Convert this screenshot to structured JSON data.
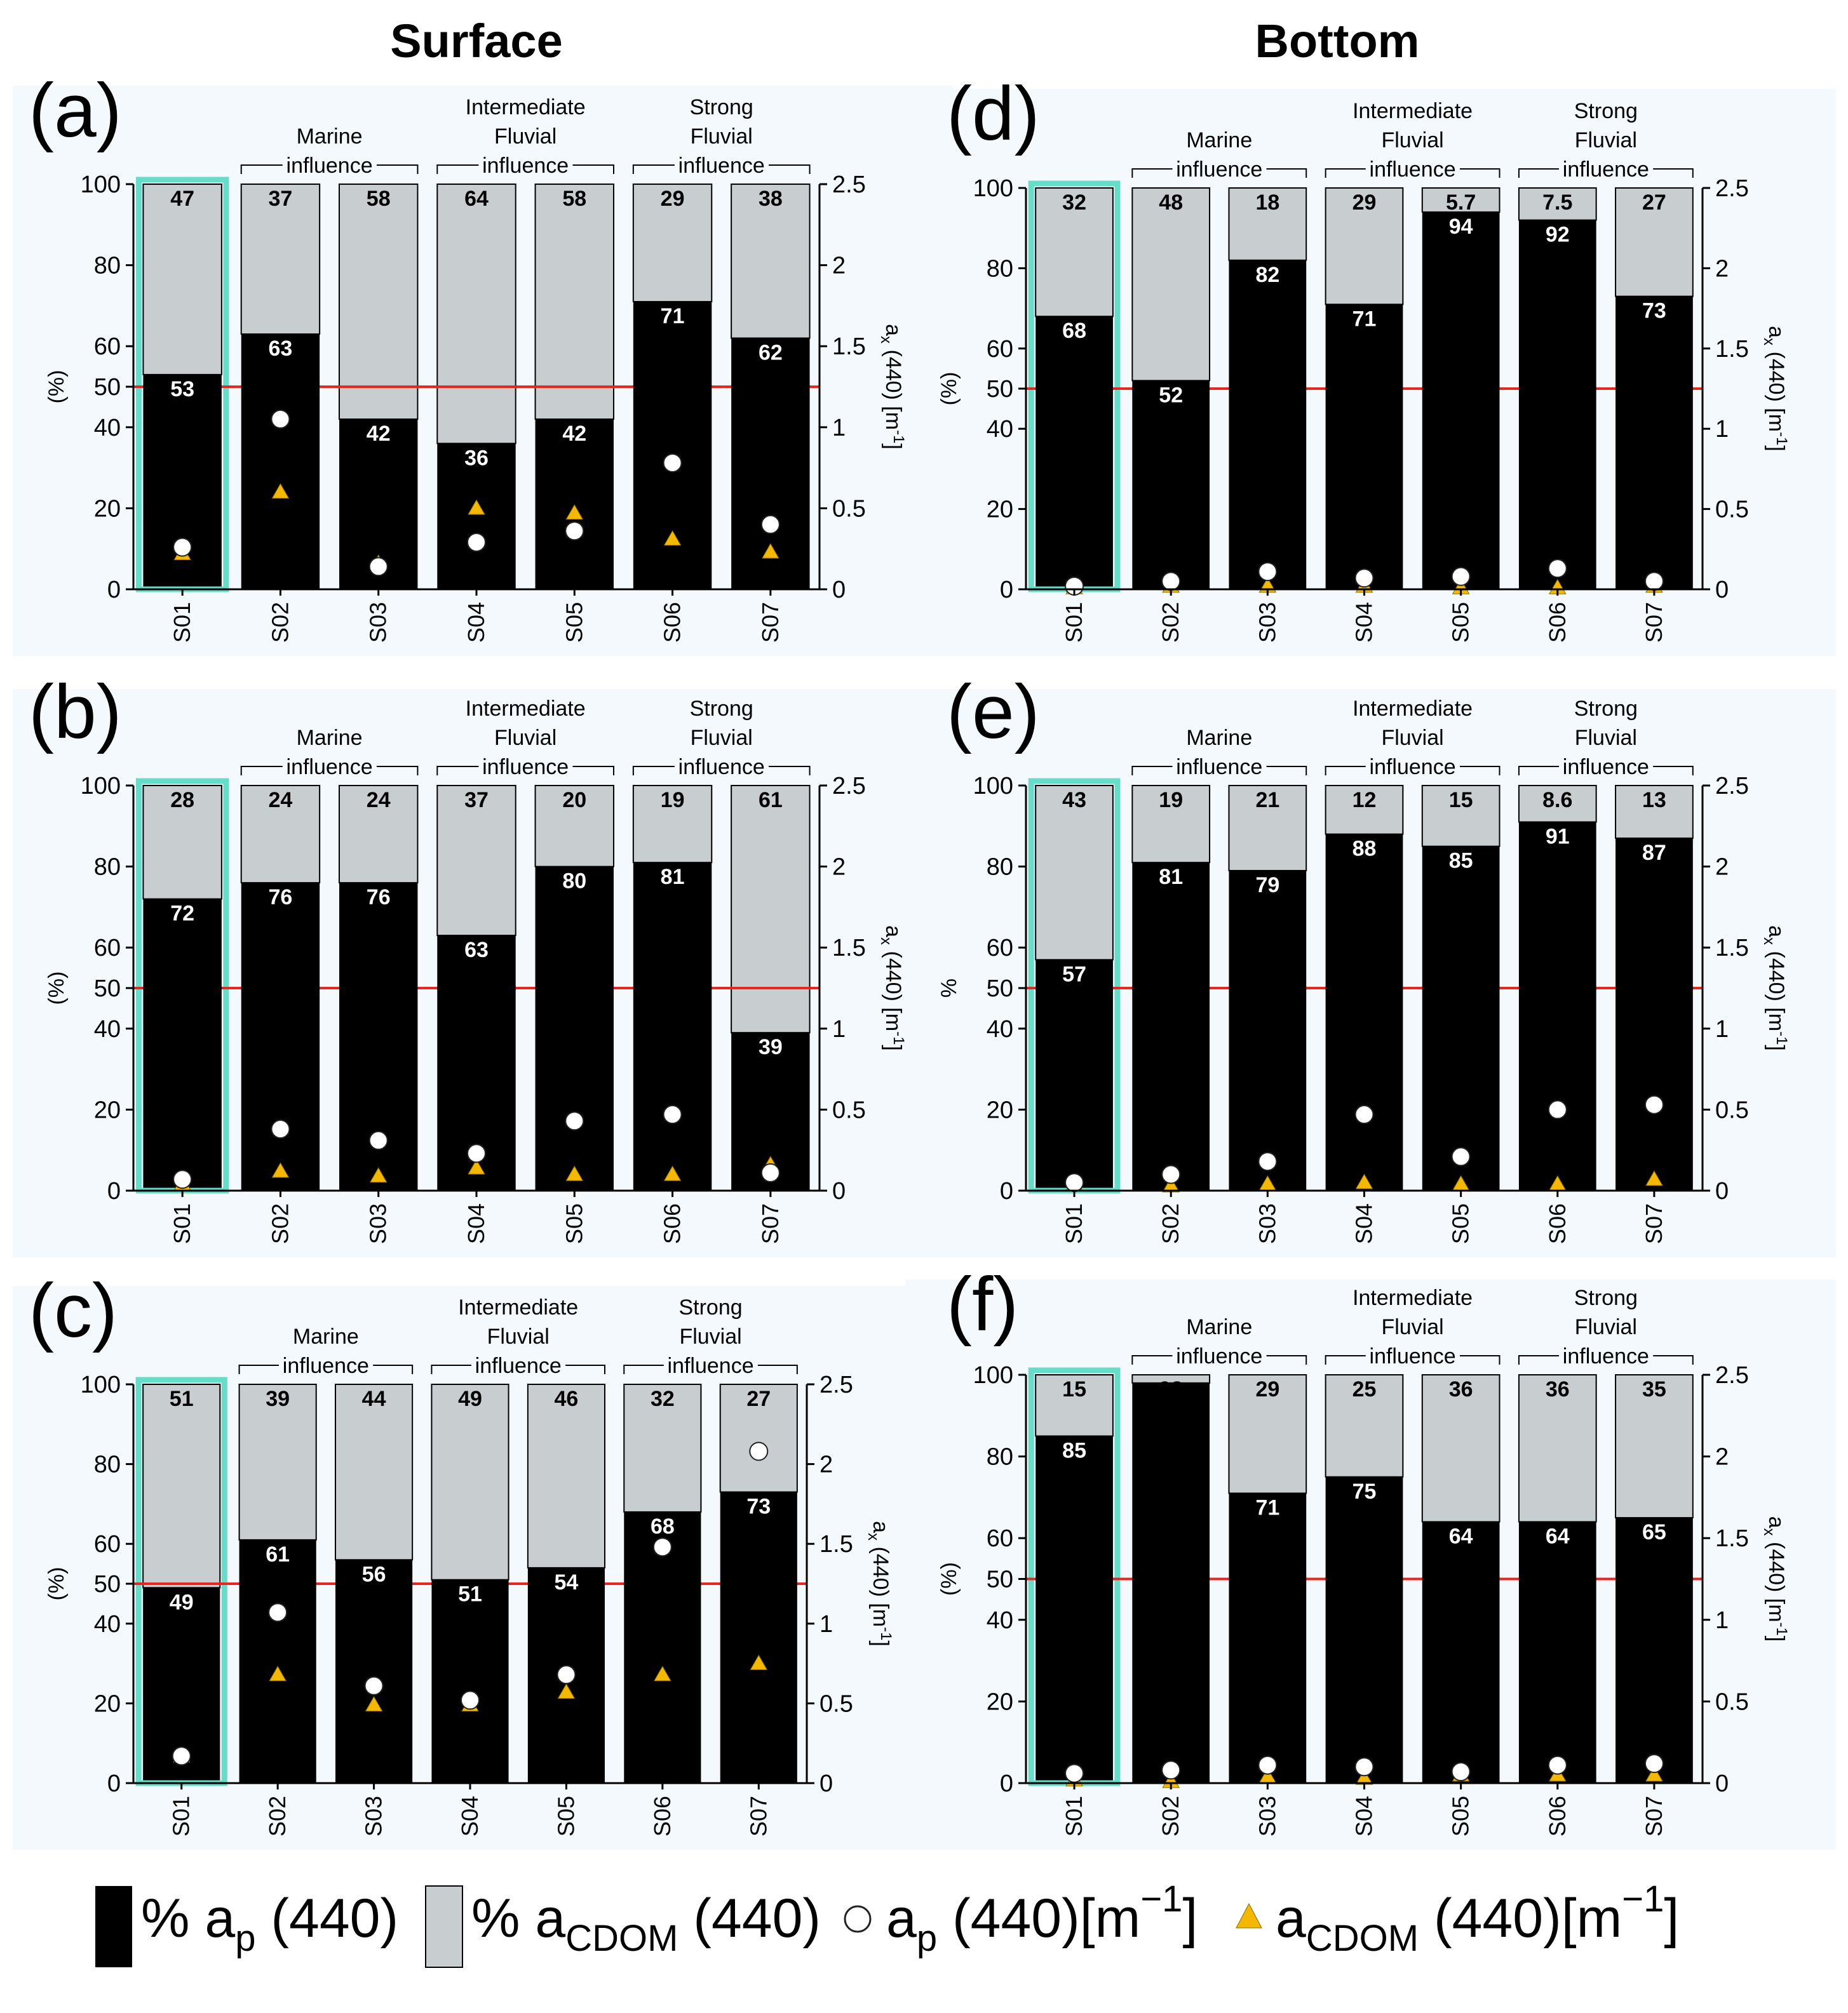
{
  "figure": {
    "column_titles": [
      "Surface",
      "Bottom"
    ],
    "legend": {
      "ap_pct": {
        "pre": "% a",
        "sub": "p",
        "post": " (440)"
      },
      "acdom_pct": {
        "pre": "% a",
        "sub": "CDOM",
        "post": " (440)"
      },
      "ap_abs": {
        "pre": "a",
        "sub": "p",
        "mid": " (440)[m",
        "sup": "−1",
        "post": "]"
      },
      "acdom_abs": {
        "pre": "a",
        "sub": "CDOM",
        "mid": " (440)[m",
        "sup": "−1",
        "post": "]"
      }
    },
    "colors": {
      "ap_bar": "#000000",
      "cdom_bar": "#c8cdd0",
      "panel_bg": "#f3f9fc",
      "highlight": "#66ddc8",
      "ref_line": "#e8261e",
      "triangle": "#f5b800",
      "circle_fill": "#ffffff"
    }
  },
  "chart_data": [
    {
      "type": "bar",
      "panel": "(a)",
      "column": "Surface",
      "categories": [
        "S01",
        "S02",
        "S03",
        "S04",
        "S05",
        "S06",
        "S07"
      ],
      "groups": [
        {
          "lines": [
            "Marine",
            "influence"
          ],
          "span": [
            "S02",
            "S03"
          ]
        },
        {
          "lines": [
            "Intermediate",
            "Fluvial",
            "influence"
          ],
          "span": [
            "S04",
            "S05"
          ]
        },
        {
          "lines": [
            "Strong",
            "Fluvial",
            "influence"
          ],
          "span": [
            "S06",
            "S07"
          ]
        }
      ],
      "ylabel": "(%)",
      "ylim": [
        0,
        100
      ],
      "yticks": [
        "0",
        "20",
        "40",
        "50",
        "60",
        "80",
        "100"
      ],
      "y2label": "ax (440) [m-1]",
      "y2lim": [
        0,
        2.5
      ],
      "y2ticks": [
        "0",
        "0.5",
        "1",
        "1.5",
        "2",
        "2.5"
      ],
      "reference_line_pct": 50,
      "highlight_category": "S01",
      "series": [
        {
          "name": "% ap (440)",
          "values": [
            53,
            63,
            42,
            36,
            42,
            71,
            62
          ],
          "labels": [
            "53",
            "63",
            "42",
            "36",
            "42",
            "71",
            "62"
          ]
        },
        {
          "name": "% aCDOM (440)",
          "values": [
            47,
            37,
            58,
            64,
            58,
            29,
            38
          ],
          "labels": [
            "47",
            "37",
            "58",
            "64",
            "58",
            "29",
            "38"
          ]
        },
        {
          "name": "ap (440) [m-1]",
          "axis": "right",
          "values": [
            0.26,
            1.05,
            0.14,
            0.29,
            0.36,
            0.78,
            0.4
          ]
        },
        {
          "name": "aCDOM (440) [m-1]",
          "axis": "right",
          "values": [
            0.22,
            0.6,
            0.16,
            0.5,
            0.47,
            0.31,
            0.23
          ]
        }
      ]
    },
    {
      "type": "bar",
      "panel": "(b)",
      "column": "Surface",
      "categories": [
        "S01",
        "S02",
        "S03",
        "S04",
        "S05",
        "S06",
        "S07"
      ],
      "groups": [
        {
          "lines": [
            "Marine",
            "influence"
          ],
          "span": [
            "S02",
            "S03"
          ]
        },
        {
          "lines": [
            "Intermediate",
            "Fluvial",
            "influence"
          ],
          "span": [
            "S04",
            "S05"
          ]
        },
        {
          "lines": [
            "Strong",
            "Fluvial",
            "influence"
          ],
          "span": [
            "S06",
            "S07"
          ]
        }
      ],
      "ylabel": "(%)",
      "ylim": [
        0,
        100
      ],
      "yticks": [
        "0",
        "20",
        "40",
        "50",
        "60",
        "80",
        "100"
      ],
      "y2label": "ax (440) [m-1]",
      "y2lim": [
        0,
        2.5
      ],
      "y2ticks": [
        "0",
        "0.5",
        "1",
        "1.5",
        "2",
        "2.5"
      ],
      "reference_line_pct": 50,
      "highlight_category": "S01",
      "series": [
        {
          "name": "% ap (440)",
          "values": [
            72,
            76,
            76,
            63,
            80,
            81,
            39
          ],
          "labels": [
            "72",
            "76",
            "76",
            "63",
            "80",
            "81",
            "39"
          ]
        },
        {
          "name": "% aCDOM (440)",
          "values": [
            28,
            24,
            24,
            37,
            20,
            19,
            61
          ],
          "labels": [
            "28",
            "24",
            "24",
            "37",
            "20",
            "19",
            "61"
          ]
        },
        {
          "name": "ap (440) [m-1]",
          "axis": "right",
          "values": [
            0.07,
            0.38,
            0.31,
            0.23,
            0.43,
            0.47,
            0.11
          ]
        },
        {
          "name": "aCDOM (440) [m-1]",
          "axis": "right",
          "values": [
            0.04,
            0.12,
            0.09,
            0.14,
            0.1,
            0.1,
            0.16
          ]
        }
      ]
    },
    {
      "type": "bar",
      "panel": "(c)",
      "column": "Surface",
      "categories": [
        "S01",
        "S02",
        "S03",
        "S04",
        "S05",
        "S06",
        "S07"
      ],
      "groups": [
        {
          "lines": [
            "Marine",
            "influence"
          ],
          "span": [
            "S02",
            "S03"
          ]
        },
        {
          "lines": [
            "Intermediate",
            "Fluvial",
            "influence"
          ],
          "span": [
            "S04",
            "S05"
          ]
        },
        {
          "lines": [
            "Strong",
            "Fluvial",
            "influence"
          ],
          "span": [
            "S06",
            "S07"
          ]
        }
      ],
      "ylabel": "(%)",
      "ylim": [
        0,
        100
      ],
      "yticks": [
        "0",
        "20",
        "40",
        "50",
        "60",
        "80",
        "100"
      ],
      "y2label": "ax (440) [m-1]",
      "y2lim": [
        0,
        2.5
      ],
      "y2ticks": [
        "0",
        "0.5",
        "1",
        "1.5",
        "2",
        "2.5"
      ],
      "reference_line_pct": 50,
      "highlight_category": "S01",
      "series": [
        {
          "name": "% ap (440)",
          "values": [
            49,
            61,
            56,
            51,
            54,
            68,
            73
          ],
          "labels": [
            "49",
            "61",
            "56",
            "51",
            "54",
            "68",
            "73"
          ]
        },
        {
          "name": "% aCDOM (440)",
          "values": [
            51,
            39,
            44,
            49,
            46,
            32,
            27
          ],
          "labels": [
            "51",
            "39",
            "44",
            "49",
            "46",
            "32",
            "27"
          ]
        },
        {
          "name": "ap (440) [m-1]",
          "axis": "right",
          "values": [
            0.17,
            1.07,
            0.61,
            0.52,
            0.68,
            1.48,
            2.08
          ]
        },
        {
          "name": "aCDOM (440) [m-1]",
          "axis": "right",
          "values": [
            0.17,
            0.68,
            0.49,
            0.49,
            0.57,
            0.68,
            0.75
          ]
        }
      ]
    },
    {
      "type": "bar",
      "panel": "(d)",
      "column": "Bottom",
      "categories": [
        "S01",
        "S02",
        "S03",
        "S04",
        "S05",
        "S06",
        "S07"
      ],
      "groups": [
        {
          "lines": [
            "Marine",
            "influence"
          ],
          "span": [
            "S02",
            "S03"
          ]
        },
        {
          "lines": [
            "Intermediate",
            "Fluvial",
            "influence"
          ],
          "span": [
            "S04",
            "S05"
          ]
        },
        {
          "lines": [
            "Strong",
            "Fluvial",
            "influence"
          ],
          "span": [
            "S06",
            "S07"
          ]
        }
      ],
      "ylabel": "(%)",
      "ylim": [
        0,
        100
      ],
      "yticks": [
        "0",
        "20",
        "40",
        "50",
        "60",
        "80",
        "100"
      ],
      "y2label": "ax (440) [m-1]",
      "y2lim": [
        0,
        2.5
      ],
      "y2ticks": [
        "0",
        "0.5",
        "1",
        "1.5",
        "2",
        "2.5"
      ],
      "reference_line_pct": 50,
      "highlight_category": "S01",
      "series": [
        {
          "name": "% ap (440)",
          "values": [
            68,
            52,
            82,
            71,
            94,
            92,
            73
          ],
          "labels": [
            "68",
            "52",
            "82",
            "71",
            "94",
            "92",
            "73"
          ]
        },
        {
          "name": "% aCDOM (440)",
          "values": [
            32,
            48,
            18,
            29,
            5.7,
            7.5,
            27
          ],
          "labels": [
            "32",
            "48",
            "18",
            "29",
            "5.7",
            "7.5",
            "27"
          ]
        },
        {
          "name": "ap (440) [m-1]",
          "axis": "right",
          "values": [
            0.02,
            0.05,
            0.11,
            0.07,
            0.08,
            0.13,
            0.05
          ]
        },
        {
          "name": "aCDOM (440) [m-1]",
          "axis": "right",
          "values": [
            0.01,
            0.02,
            0.02,
            0.02,
            0.01,
            0.01,
            0.02
          ]
        }
      ]
    },
    {
      "type": "bar",
      "panel": "(e)",
      "column": "Bottom",
      "categories": [
        "S01",
        "S02",
        "S03",
        "S04",
        "S05",
        "S06",
        "S07"
      ],
      "groups": [
        {
          "lines": [
            "Marine",
            "influence"
          ],
          "span": [
            "S02",
            "S03"
          ]
        },
        {
          "lines": [
            "Intermediate",
            "Fluvial",
            "influence"
          ],
          "span": [
            "S04",
            "S05"
          ]
        },
        {
          "lines": [
            "Strong",
            "Fluvial",
            "influence"
          ],
          "span": [
            "S06",
            "S07"
          ]
        }
      ],
      "ylabel": "%",
      "ylim": [
        0,
        100
      ],
      "yticks": [
        "0",
        "20",
        "40",
        "50",
        "60",
        "80",
        "100"
      ],
      "y2label": "ax (440) [m-1]",
      "y2lim": [
        0,
        2.5
      ],
      "y2ticks": [
        "0",
        "0.5",
        "1",
        "1.5",
        "2",
        "2.5"
      ],
      "reference_line_pct": 50,
      "highlight_category": "S01",
      "series": [
        {
          "name": "% ap (440)",
          "values": [
            57,
            81,
            79,
            88,
            85,
            91,
            87
          ],
          "labels": [
            "57",
            "81",
            "79",
            "88",
            "85",
            "91",
            "87"
          ]
        },
        {
          "name": "% aCDOM (440)",
          "values": [
            43,
            19,
            21,
            12,
            15,
            8.6,
            13
          ],
          "labels": [
            "43",
            "19",
            "21",
            "12",
            "15",
            "8.6",
            "13"
          ]
        },
        {
          "name": "ap (440) [m-1]",
          "axis": "right",
          "values": [
            0.05,
            0.1,
            0.18,
            0.47,
            0.21,
            0.5,
            0.53
          ]
        },
        {
          "name": "aCDOM (440) [m-1]",
          "axis": "right",
          "values": [
            0.04,
            0.03,
            0.04,
            0.05,
            0.04,
            0.04,
            0.07
          ]
        }
      ]
    },
    {
      "type": "bar",
      "panel": "(f)",
      "column": "Bottom",
      "categories": [
        "S01",
        "S02",
        "S03",
        "S04",
        "S05",
        "S06",
        "S07"
      ],
      "groups": [
        {
          "lines": [
            "Marine",
            "influence"
          ],
          "span": [
            "S02",
            "S03"
          ]
        },
        {
          "lines": [
            "Intermediate",
            "Fluvial",
            "influence"
          ],
          "span": [
            "S04",
            "S05"
          ]
        },
        {
          "lines": [
            "Strong",
            "Fluvial",
            "influence"
          ],
          "span": [
            "S06",
            "S07"
          ]
        }
      ],
      "ylabel": "(%)",
      "ylim": [
        0,
        100
      ],
      "yticks": [
        "0",
        "20",
        "40",
        "50",
        "60",
        "80",
        "100"
      ],
      "y2label": "ax (440) [m-1]",
      "y2lim": [
        0,
        2.5
      ],
      "y2ticks": [
        "0",
        "0.5",
        "1",
        "1.5",
        "2",
        "2.5"
      ],
      "reference_line_pct": 50,
      "highlight_category": "S01",
      "series": [
        {
          "name": "% ap (440)",
          "values": [
            85,
            98,
            71,
            75,
            64,
            64,
            65
          ],
          "labels": [
            "85",
            "98",
            "71",
            "75",
            "64",
            "64",
            "65"
          ]
        },
        {
          "name": "% aCDOM (440)",
          "values": [
            15,
            2,
            29,
            25,
            36,
            36,
            35
          ],
          "labels": [
            "15",
            "",
            "29",
            "25",
            "36",
            "36",
            "35"
          ]
        },
        {
          "name": "ap (440) [m-1]",
          "axis": "right",
          "values": [
            0.06,
            0.08,
            0.11,
            0.1,
            0.07,
            0.11,
            0.12
          ]
        },
        {
          "name": "aCDOM (440) [m-1]",
          "axis": "right",
          "values": [
            0.02,
            0.01,
            0.04,
            0.03,
            0.05,
            0.05,
            0.05
          ]
        }
      ]
    }
  ]
}
